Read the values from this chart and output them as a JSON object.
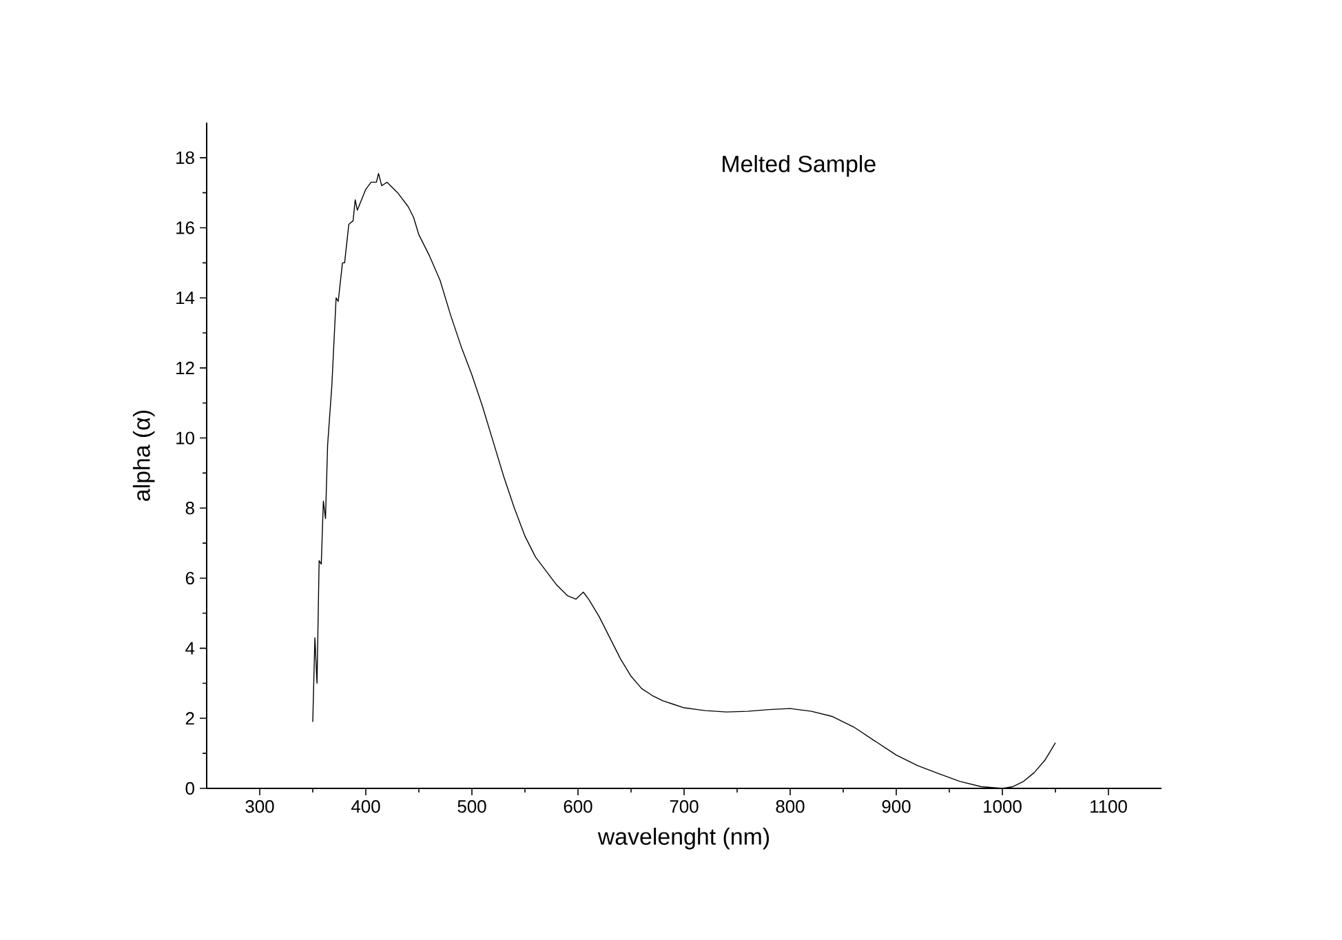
{
  "chart_data": {
    "type": "line",
    "xlabel": "wavelenght (nm)",
    "ylabel": "alpha (α)",
    "annotations": [
      "Melted Sample"
    ],
    "xlim": [
      250,
      1150
    ],
    "xticks": [
      300,
      400,
      500,
      600,
      700,
      800,
      900,
      1000,
      1100
    ],
    "ylim": [
      0,
      19
    ],
    "yticks": [
      0,
      2,
      4,
      6,
      8,
      10,
      12,
      14,
      16,
      18
    ],
    "marker": "none",
    "line_style": "solid",
    "series": [
      {
        "color": "#000000",
        "x": [
          350,
          352,
          354,
          356,
          358,
          360,
          362,
          364,
          368,
          372,
          374,
          378,
          380,
          384,
          388,
          390,
          392,
          396,
          400,
          405,
          410,
          412,
          415,
          420,
          430,
          440,
          445,
          450,
          460,
          470,
          480,
          490,
          500,
          510,
          520,
          530,
          540,
          550,
          560,
          570,
          580,
          590,
          598,
          605,
          610,
          620,
          630,
          640,
          650,
          660,
          670,
          680,
          690,
          700,
          720,
          740,
          760,
          780,
          800,
          820,
          840,
          860,
          880,
          900,
          920,
          940,
          960,
          980,
          1000,
          1010,
          1020,
          1030,
          1040,
          1050
        ],
        "values": [
          1.9,
          4.3,
          3.0,
          6.5,
          6.4,
          8.2,
          7.7,
          9.8,
          11.5,
          14.0,
          13.9,
          15.0,
          15.0,
          16.1,
          16.2,
          16.8,
          16.5,
          16.8,
          17.1,
          17.3,
          17.3,
          17.55,
          17.2,
          17.3,
          17.0,
          16.6,
          16.3,
          15.8,
          15.2,
          14.5,
          13.5,
          12.6,
          11.8,
          10.9,
          9.9,
          8.9,
          8.0,
          7.2,
          6.6,
          6.2,
          5.8,
          5.5,
          5.4,
          5.6,
          5.4,
          4.9,
          4.3,
          3.7,
          3.2,
          2.85,
          2.65,
          2.5,
          2.4,
          2.3,
          2.22,
          2.18,
          2.2,
          2.25,
          2.28,
          2.2,
          2.05,
          1.75,
          1.35,
          0.95,
          0.65,
          0.42,
          0.2,
          0.05,
          0.0,
          0.05,
          0.2,
          0.45,
          0.8,
          1.3
        ]
      }
    ]
  }
}
